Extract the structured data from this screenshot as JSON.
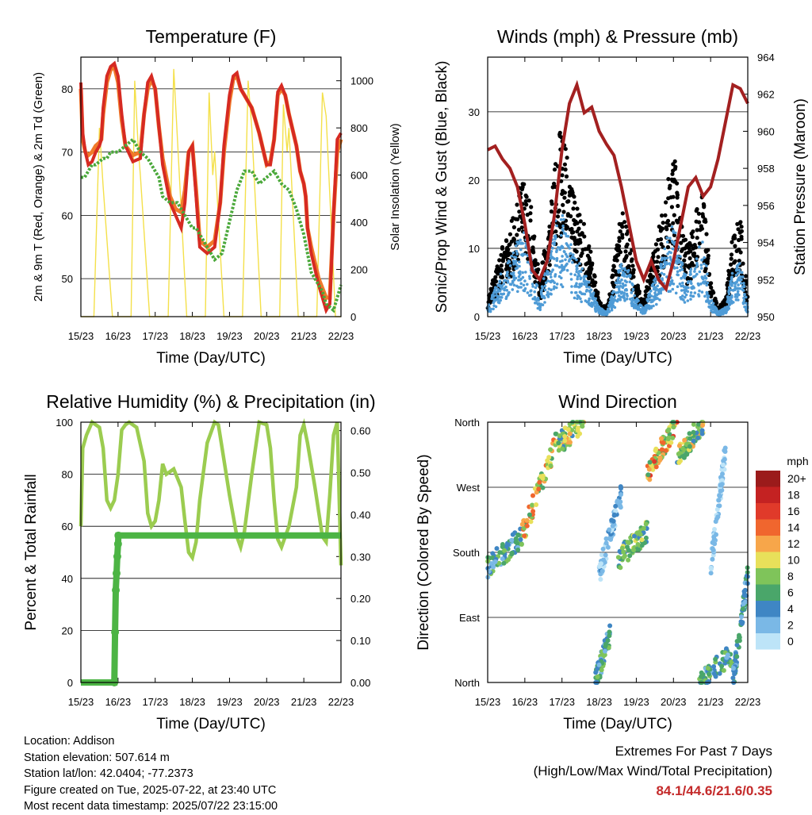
{
  "day_ticks": [
    "15/23",
    "16/23",
    "17/23",
    "18/23",
    "19/23",
    "20/23",
    "21/23",
    "22/23"
  ],
  "chart_data": [
    {
      "type": "line",
      "title": "Temperature (F)",
      "xlabel": "Time (Day/UTC)",
      "ylabel": "2m & 9m T (Red, Orange) & 2m Td (Green)",
      "ylabel_right": "Solar Insolation (Yellow)",
      "ylim": [
        44,
        85
      ],
      "yticks": [
        50,
        60,
        70,
        80
      ],
      "ylim_right": [
        0,
        1100
      ],
      "yticks_right": [
        0,
        200,
        400,
        600,
        800,
        1000
      ],
      "xlim_days": [
        0,
        7
      ],
      "colors": {
        "t2m": "#d62a22",
        "t9m": "#f07a2a",
        "td": "#4aa83a",
        "solar": "#f4e04a"
      },
      "series": [
        {
          "key": "t9m",
          "x": [
            0,
            0.05,
            0.12,
            0.2,
            0.3,
            0.4,
            0.5,
            0.55,
            0.6,
            0.7,
            0.8,
            0.9,
            1,
            1.1,
            1.2,
            1.4,
            1.6,
            1.7,
            1.8,
            1.9,
            2,
            2.1,
            2.2,
            2.4,
            2.55,
            2.7,
            2.8,
            2.9,
            3,
            3.1,
            3.2,
            3.4,
            3.6,
            3.75,
            3.85,
            4,
            4.1,
            4.2,
            4.3,
            4.4,
            4.6,
            4.8,
            5,
            5.1,
            5.2,
            5.3,
            5.4,
            5.5,
            5.6,
            5.8,
            5.9,
            6,
            6.05,
            6.1,
            6.2,
            6.4,
            6.6,
            6.7,
            6.8,
            6.9,
            7
          ],
          "y": [
            80,
            72,
            70,
            69.5,
            70,
            71,
            71.5,
            72,
            76,
            81,
            83,
            83.5,
            81,
            75,
            71,
            69.5,
            70,
            76,
            80,
            81.5,
            80,
            74,
            69,
            63,
            61,
            60.5,
            64,
            70,
            71,
            64,
            56,
            55,
            56,
            62,
            70,
            78,
            81.5,
            82,
            80,
            79,
            77,
            73,
            68,
            68.5,
            72,
            79,
            80,
            79,
            76,
            71,
            67,
            65,
            63,
            58,
            55,
            50,
            47,
            47,
            60,
            70,
            72
          ]
        },
        {
          "key": "t2m",
          "x": [
            0,
            0.05,
            0.12,
            0.2,
            0.3,
            0.4,
            0.5,
            0.55,
            0.6,
            0.7,
            0.8,
            0.9,
            1,
            1.1,
            1.2,
            1.4,
            1.6,
            1.7,
            1.8,
            1.9,
            2,
            2.1,
            2.2,
            2.4,
            2.55,
            2.7,
            2.8,
            2.9,
            3,
            3.1,
            3.2,
            3.4,
            3.6,
            3.75,
            3.85,
            4,
            4.1,
            4.2,
            4.3,
            4.4,
            4.6,
            4.8,
            5,
            5.1,
            5.2,
            5.3,
            5.4,
            5.5,
            5.6,
            5.8,
            5.9,
            6,
            6.05,
            6.1,
            6.2,
            6.4,
            6.6,
            6.7,
            6.8,
            6.9,
            7
          ],
          "y": [
            81,
            73,
            70,
            68,
            68.5,
            70,
            71,
            72,
            77,
            82,
            83.5,
            84,
            82,
            76,
            71,
            68.5,
            69,
            76,
            81,
            82,
            80,
            74,
            68,
            62,
            60,
            58,
            62,
            70,
            71,
            63,
            55,
            54,
            55,
            62,
            71,
            79,
            82,
            82.5,
            80,
            79,
            77,
            73,
            68,
            68,
            72,
            79.5,
            80.5,
            79,
            76,
            71,
            67,
            65,
            63,
            58,
            54,
            49,
            45,
            46,
            60,
            72,
            73
          ]
        },
        {
          "key": "td",
          "x": [
            0,
            0.1,
            0.2,
            0.3,
            0.4,
            0.5,
            0.6,
            0.7,
            0.8,
            0.9,
            1,
            1.2,
            1.4,
            1.6,
            1.8,
            2,
            2.1,
            2.2,
            2.4,
            2.6,
            2.7,
            2.8,
            3,
            3.1,
            3.2,
            3.4,
            3.5,
            3.6,
            3.8,
            4,
            4.2,
            4.4,
            4.6,
            4.8,
            5,
            5.2,
            5.4,
            5.6,
            5.8,
            6,
            6.2,
            6.4,
            6.5,
            6.6,
            6.8,
            7
          ],
          "y": [
            66,
            66,
            67,
            68,
            68,
            68.5,
            69,
            69,
            70,
            70,
            70,
            71,
            72,
            70,
            69,
            67,
            66,
            63,
            62,
            62,
            61,
            60,
            58,
            58,
            57,
            55,
            54,
            53,
            54,
            59,
            64,
            67,
            67,
            65,
            66,
            67,
            65,
            64,
            61,
            57,
            51,
            49,
            48,
            46,
            45,
            49
          ]
        },
        {
          "key": "solar",
          "x": [
            0,
            0.35,
            0.5,
            0.6,
            0.85,
            1.35,
            1.45,
            1.55,
            1.6,
            1.85,
            2.35,
            2.5,
            2.6,
            2.85,
            3.35,
            3.45,
            3.55,
            3.6,
            3.85,
            4.35,
            4.5,
            4.6,
            4.85,
            5.35,
            5.45,
            5.55,
            5.6,
            5.85,
            6.35,
            6.5,
            6.6,
            6.85,
            7
          ],
          "y": [
            0,
            0,
            800,
            550,
            0,
            0,
            1000,
            700,
            600,
            0,
            0,
            1050,
            750,
            0,
            0,
            950,
            600,
            700,
            0,
            0,
            1000,
            800,
            0,
            0,
            900,
            700,
            800,
            0,
            0,
            950,
            850,
            0,
            0
          ]
        }
      ]
    },
    {
      "type": "line",
      "title": "Winds (mph) & Pressure (mb)",
      "xlabel": "Time (Day/UTC)",
      "ylabel": "Sonic/Prop Wind & Gust (Blue, Black)",
      "ylabel_right": "Station Pressure (Maroon)",
      "ylim": [
        0,
        38
      ],
      "yticks": [
        0,
        10,
        20,
        30
      ],
      "ylim_right": [
        950,
        964
      ],
      "yticks_right": [
        950,
        952,
        954,
        956,
        958,
        960,
        962,
        964
      ],
      "xlim_days": [
        0,
        7
      ],
      "colors": {
        "wind": "#4e9bd6",
        "gust": "#000000",
        "pressure": "#a32020"
      },
      "series": [
        {
          "key": "wind",
          "x": [
            0,
            0.2,
            0.4,
            0.6,
            0.8,
            1,
            1.2,
            1.4,
            1.6,
            1.8,
            2,
            2.2,
            2.4,
            2.6,
            2.8,
            3,
            3.2,
            3.4,
            3.6,
            3.8,
            4,
            4.2,
            4.4,
            4.6,
            4.8,
            5,
            5.2,
            5.4,
            5.6,
            5.8,
            6,
            6.2,
            6.4,
            6.6,
            6.8,
            7
          ],
          "y": [
            1,
            3,
            5,
            6,
            8,
            9,
            6,
            2,
            6,
            10,
            11,
            8,
            6,
            5,
            3,
            1,
            0.5,
            3,
            6,
            5,
            2,
            1,
            3,
            5,
            8,
            10,
            6,
            4,
            7,
            8,
            2,
            0.5,
            1,
            5,
            6,
            1
          ]
        },
        {
          "key": "gust",
          "x": [
            0,
            0.2,
            0.4,
            0.6,
            0.8,
            1,
            1.2,
            1.4,
            1.6,
            1.8,
            2,
            2.2,
            2.4,
            2.6,
            2.8,
            3,
            3.2,
            3.4,
            3.6,
            3.8,
            4,
            4.2,
            4.4,
            4.6,
            4.8,
            5,
            5.2,
            5.4,
            5.6,
            5.8,
            6,
            6.2,
            6.4,
            6.6,
            6.8,
            7
          ],
          "y": [
            2,
            5,
            8,
            10,
            14,
            16,
            12,
            4,
            10,
            18,
            22,
            16,
            13,
            11,
            7,
            2,
            1,
            6,
            12,
            10,
            4,
            2,
            6,
            10,
            14,
            19,
            12,
            8,
            13,
            14,
            4,
            1,
            2,
            10,
            12,
            2
          ]
        },
        {
          "key": "pressure",
          "x": [
            0,
            0.2,
            0.4,
            0.6,
            0.8,
            1,
            1.2,
            1.4,
            1.6,
            1.8,
            2,
            2.2,
            2.4,
            2.6,
            2.8,
            3,
            3.2,
            3.4,
            3.6,
            3.8,
            4,
            4.2,
            4.4,
            4.6,
            4.8,
            5,
            5.2,
            5.4,
            5.6,
            5.8,
            6,
            6.2,
            6.4,
            6.6,
            6.8,
            7
          ],
          "y": [
            959,
            959.2,
            958.5,
            958,
            957,
            955,
            952.5,
            952,
            953,
            955.5,
            959,
            961.5,
            962.5,
            961,
            961.3,
            960,
            959.3,
            958.7,
            957,
            955,
            953,
            952,
            953,
            952,
            951.5,
            953,
            955,
            957,
            957.5,
            956.5,
            957,
            958.5,
            960.5,
            962.5,
            962.3,
            961.5
          ]
        }
      ]
    },
    {
      "type": "line",
      "title": "Relative Humidity (%) & Precipitation (in)",
      "xlabel": "Time (Day/UTC)",
      "ylabel": "Percent & Total Rainfall",
      "ylim": [
        0,
        100
      ],
      "yticks": [
        0,
        20,
        40,
        60,
        80,
        100
      ],
      "ylim_right": [
        0,
        0.62
      ],
      "yticks_right": [
        "0.00",
        "0.10",
        "0.20",
        "0.30",
        "0.40",
        "0.50",
        "0.60"
      ],
      "xlim_days": [
        0,
        7
      ],
      "colors": {
        "rh": "#9bcc50",
        "precip": "#4cb444"
      },
      "series": [
        {
          "key": "rh",
          "x": [
            0,
            0.05,
            0.15,
            0.3,
            0.5,
            0.6,
            0.7,
            0.8,
            0.9,
            1,
            1.1,
            1.2,
            1.3,
            1.5,
            1.7,
            1.8,
            1.9,
            2,
            2.1,
            2.2,
            2.3,
            2.5,
            2.7,
            2.8,
            2.9,
            3,
            3.1,
            3.2,
            3.4,
            3.6,
            3.7,
            3.8,
            4,
            4.2,
            4.3,
            4.4,
            4.6,
            4.8,
            5,
            5.1,
            5.2,
            5.3,
            5.4,
            5.6,
            5.8,
            5.9,
            6,
            6.1,
            6.3,
            6.5,
            6.6,
            6.7,
            6.8,
            6.9,
            7
          ],
          "y": [
            60,
            90,
            95,
            100,
            98,
            90,
            70,
            67,
            70,
            80,
            97,
            99,
            100,
            98,
            85,
            65,
            60,
            62,
            70,
            84,
            80,
            82,
            75,
            62,
            50,
            48,
            54,
            70,
            92,
            100,
            99,
            90,
            72,
            56,
            52,
            58,
            80,
            100,
            99,
            90,
            70,
            55,
            52,
            60,
            75,
            95,
            99,
            92,
            75,
            56,
            54,
            72,
            95,
            100,
            45
          ]
        },
        {
          "key": "precip",
          "x": [
            0,
            0.9,
            0.92,
            0.94,
            0.96,
            0.98,
            1,
            1.01,
            7
          ],
          "y": [
            0,
            0,
            0.12,
            0.22,
            0.26,
            0.3,
            0.33,
            0.35,
            0.35
          ]
        }
      ]
    },
    {
      "type": "scatter",
      "title": "Wind Direction",
      "xlabel": "Time (Day/UTC)",
      "ylabel": "Direction (Colored By Speed)",
      "ylim": [
        0,
        360
      ],
      "y_categories": [
        "North",
        "East",
        "South",
        "West",
        "North"
      ],
      "xlim_days": [
        0,
        7
      ],
      "colorbar": {
        "title": "mph",
        "labels": [
          "20+",
          "18",
          "16",
          "14",
          "12",
          "10",
          "8",
          "6",
          "4",
          "2",
          "0"
        ],
        "colors": [
          "#9b1b1b",
          "#c42222",
          "#e03a2a",
          "#f0662e",
          "#f7a64a",
          "#e8e05a",
          "#7fc45a",
          "#4aa66a",
          "#3f86c4",
          "#7ab8e6",
          "#bde4f8"
        ]
      },
      "clusters": [
        {
          "x": [
            0,
            0.9
          ],
          "y": [
            160,
            200
          ],
          "speed": [
            2,
            8
          ]
        },
        {
          "x": [
            0.9,
            1.9
          ],
          "y": [
            200,
            340
          ],
          "speed": [
            6,
            14
          ]
        },
        {
          "x": [
            1.9,
            2.6
          ],
          "y": [
            330,
            360
          ],
          "speed": [
            4,
            12
          ]
        },
        {
          "x": [
            2.9,
            3.3
          ],
          "y": [
            0,
            70
          ],
          "speed": [
            2,
            8
          ]
        },
        {
          "x": [
            3.0,
            3.6
          ],
          "y": [
            150,
            260
          ],
          "speed": [
            0,
            4
          ]
        },
        {
          "x": [
            3.5,
            4.3
          ],
          "y": [
            170,
            210
          ],
          "speed": [
            4,
            10
          ]
        },
        {
          "x": [
            4.3,
            5.1
          ],
          "y": [
            290,
            360
          ],
          "speed": [
            6,
            16
          ]
        },
        {
          "x": [
            5.1,
            5.8
          ],
          "y": [
            310,
            360
          ],
          "speed": [
            4,
            12
          ]
        },
        {
          "x": [
            5.7,
            6.6
          ],
          "y": [
            0,
            40
          ],
          "speed": [
            2,
            8
          ]
        },
        {
          "x": [
            6.0,
            6.4
          ],
          "y": [
            160,
            320
          ],
          "speed": [
            0,
            3
          ]
        },
        {
          "x": [
            6.6,
            7.0
          ],
          "y": [
            0,
            150
          ],
          "speed": [
            2,
            6
          ]
        }
      ]
    }
  ],
  "info": {
    "location": "Location: Addison",
    "elevation": "Station elevation: 507.614 m",
    "latlon": "Station lat/lon: 42.0404; -77.2373",
    "created": "Figure created on Tue, 2025-07-22, at 23:40 UTC",
    "recent": "Most recent data timestamp: 2025/07/22 23:15:00"
  },
  "extremes": {
    "title": "Extremes For Past 7 Days",
    "subtitle": "(High/Low/Max Wind/Total Precipitation)",
    "values": "84.1/44.6/21.6/0.35"
  }
}
